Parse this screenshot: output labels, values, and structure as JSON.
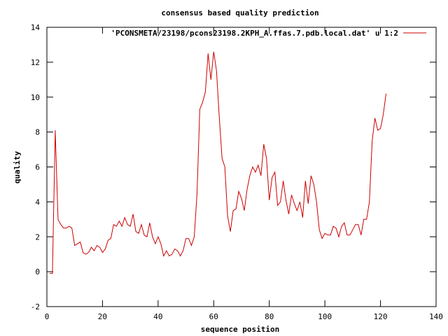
{
  "chart_data": {
    "type": "line",
    "title": "consensus based quality prediction",
    "xlabel": "sequence position",
    "ylabel": "quality",
    "xlim": [
      0,
      140
    ],
    "ylim": [
      -2,
      14
    ],
    "xticks": [
      0,
      20,
      40,
      60,
      80,
      100,
      120,
      140
    ],
    "yticks": [
      -2,
      0,
      2,
      4,
      6,
      8,
      10,
      12,
      14
    ],
    "grid": false,
    "legend_position": "top-right",
    "series": [
      {
        "name": "'PCONSMETA/23198/pcons23198.2KPH_A.ffas.7.pdb.local.dat' u 1:2",
        "color": "#cc0000",
        "x": [
          1,
          2,
          3,
          4,
          5,
          6,
          7,
          8,
          9,
          10,
          11,
          12,
          13,
          14,
          15,
          16,
          17,
          18,
          19,
          20,
          21,
          22,
          23,
          24,
          25,
          26,
          27,
          28,
          29,
          30,
          31,
          32,
          33,
          34,
          35,
          36,
          37,
          38,
          39,
          40,
          41,
          42,
          43,
          44,
          45,
          46,
          47,
          48,
          49,
          50,
          51,
          52,
          53,
          54,
          55,
          56,
          57,
          58,
          59,
          60,
          61,
          62,
          63,
          64,
          65,
          66,
          67,
          68,
          69,
          70,
          71,
          72,
          73,
          74,
          75,
          76,
          77,
          78,
          79,
          80,
          81,
          82,
          83,
          84,
          85,
          86,
          87,
          88,
          89,
          90,
          91,
          92,
          93,
          94,
          95,
          96,
          97,
          98,
          99,
          100,
          101,
          102,
          103,
          104,
          105,
          106,
          107,
          108,
          109,
          110,
          111,
          112,
          113,
          114,
          115,
          116,
          117,
          118,
          119,
          120,
          121,
          122
        ],
        "y": [
          -0.1,
          -0.1,
          8.1,
          3.0,
          2.7,
          2.5,
          2.5,
          2.6,
          2.5,
          1.5,
          1.6,
          1.7,
          1.1,
          1.0,
          1.1,
          1.4,
          1.2,
          1.5,
          1.4,
          1.1,
          1.3,
          1.8,
          1.9,
          2.7,
          2.6,
          2.9,
          2.6,
          3.1,
          2.7,
          2.6,
          3.3,
          2.3,
          2.2,
          2.7,
          2.1,
          2.0,
          2.8,
          2.0,
          1.6,
          2.0,
          1.6,
          0.9,
          1.2,
          0.9,
          1.0,
          1.3,
          1.2,
          0.9,
          1.2,
          1.9,
          1.9,
          1.5,
          2.0,
          4.5,
          9.3,
          9.7,
          10.3,
          12.5,
          11.0,
          12.6,
          11.5,
          8.9,
          6.5,
          6.0,
          3.2,
          2.3,
          3.5,
          3.6,
          4.6,
          4.2,
          3.5,
          4.7,
          5.5,
          6.0,
          5.7,
          6.1,
          5.5,
          7.3,
          6.5,
          4.1,
          5.4,
          5.7,
          3.8,
          4.0,
          5.2,
          4.1,
          3.3,
          4.4,
          3.9,
          3.5,
          4.0,
          3.1,
          5.2,
          3.9,
          5.5,
          5.0,
          4.0,
          2.4,
          1.9,
          2.2,
          2.1,
          2.1,
          2.6,
          2.5,
          2.0,
          2.6,
          2.8,
          2.1,
          2.1,
          2.4,
          2.7,
          2.7,
          2.1,
          3.0,
          3.0,
          4.0,
          7.5,
          8.8,
          8.1,
          8.2,
          9.0,
          10.2
        ]
      }
    ]
  }
}
